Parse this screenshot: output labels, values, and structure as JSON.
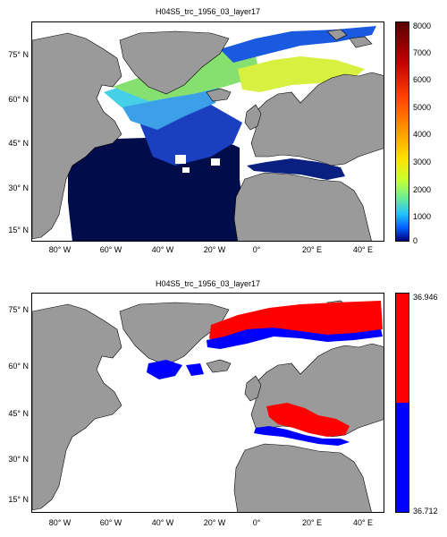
{
  "panels": [
    {
      "title": "H04S5_trc_1956_03_layer17",
      "lat_labels": [
        "75° N",
        "60° N",
        "45° N",
        "30° N",
        "15° N"
      ],
      "lon_labels": [
        "80° W",
        "60° W",
        "40° W",
        "20° W",
        "0°",
        "20° E",
        "40° E"
      ],
      "colorbar": {
        "labels": [
          "8000",
          "7000",
          "6000",
          "5000",
          "4000",
          "3000",
          "2000",
          "1000",
          "0"
        ],
        "colors": [
          "#5a0000",
          "#c00000",
          "#ff4000",
          "#ff9a00",
          "#ffe000",
          "#c8ff30",
          "#70f090",
          "#20c0ff",
          "#0060ff",
          "#00007a"
        ]
      },
      "colors": {
        "land": "#9a9a9a",
        "ocean_low": "#000d4a",
        "deep_blue": "#1a40c0",
        "mid_blue": "#3ca0e8",
        "cyan": "#46d0e8",
        "green": "#86e070",
        "yellow": "#d8f040"
      }
    },
    {
      "title": "H04S5_trc_1956_03_layer17",
      "lat_labels": [
        "75° N",
        "60° N",
        "45° N",
        "30° N",
        "15° N"
      ],
      "lon_labels": [
        "80° W",
        "60° W",
        "40° W",
        "20° W",
        "0°",
        "20° E",
        "40° E"
      ],
      "colorbar": {
        "labels": [
          "36.946",
          "36.712"
        ],
        "colors": [
          "#ff0000",
          "#0000ff"
        ]
      },
      "colors": {
        "land": "#9a9a9a",
        "high": "#ff0000",
        "low": "#0000ff"
      }
    }
  ]
}
